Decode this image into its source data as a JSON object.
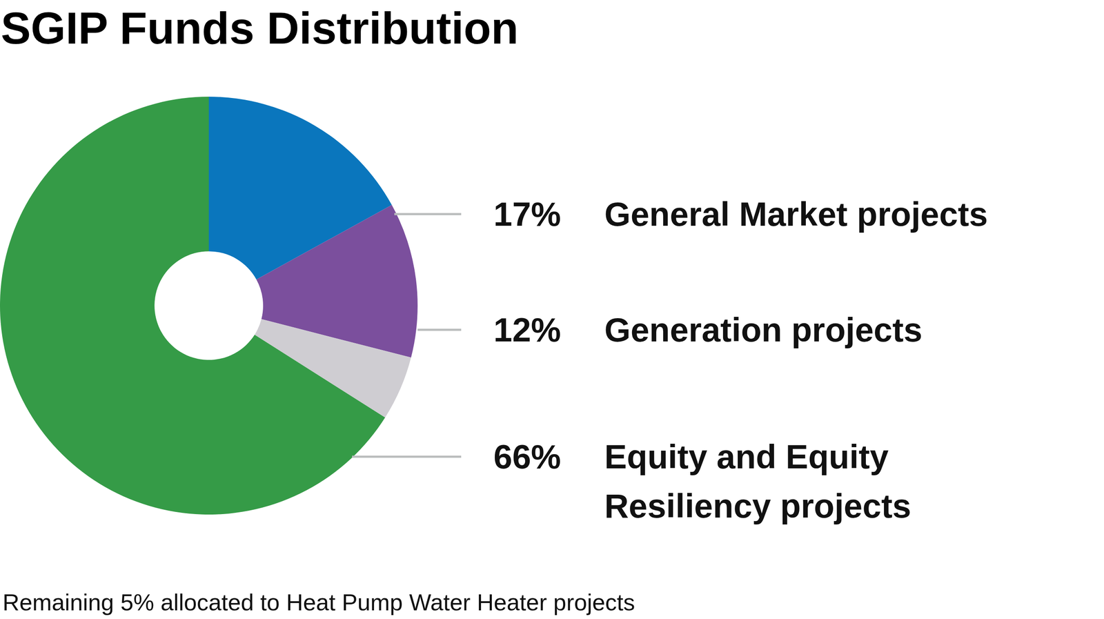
{
  "chart_data": {
    "type": "pie",
    "title": "SGIP Funds Distribution",
    "categories": [
      "General Market projects",
      "Generation projects",
      null,
      "Equity and Equity\nResiliency projects"
    ],
    "values": [
      17,
      12,
      5,
      66
    ],
    "value_labels": [
      "17%",
      "12%",
      null,
      "66%"
    ],
    "colors": [
      "#0a76bd",
      "#7b4f9d",
      "#cfcdd2",
      "#359b47"
    ],
    "annotations": [
      "Remaining 5% allocated to Heat Pump Water Heater projects"
    ],
    "data_labels": true
  }
}
